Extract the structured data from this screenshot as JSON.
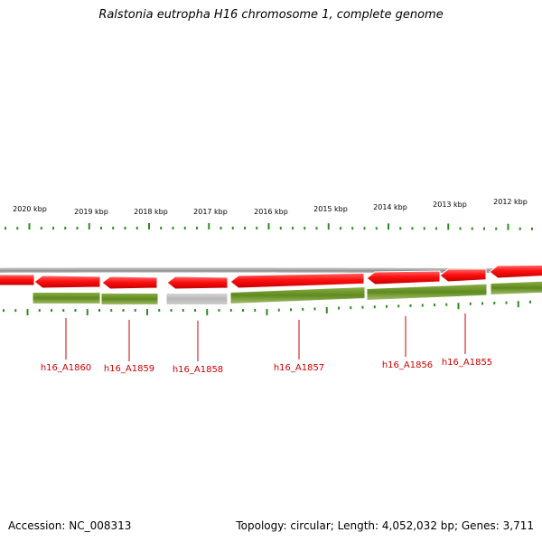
{
  "title": "Ralstonia eutropha H16 chromosome 1, complete genome",
  "accession_text": "Accession: NC_008313",
  "stats_text": "Topology: circular; Length: 4,052,032 bp; Genes: 3,711",
  "colors": {
    "forward_cds": "#ff1a1a",
    "gene": "#6b8e23",
    "pseudo_gene": "#c0c0c0",
    "backbone": "#8a8a8a",
    "ticks": "#2e8b22",
    "labels": "#cc0000"
  },
  "scale_labels": [
    "2020 kbp",
    "2019 kbp",
    "2018 kbp",
    "2017 kbp",
    "2016 kbp",
    "2015 kbp",
    "2014 kbp",
    "2013 kbp",
    "2012 kbp"
  ],
  "genes": [
    {
      "name": "h16_A1860",
      "strand": "reverse",
      "pseudo": false
    },
    {
      "name": "h16_A1859",
      "strand": "reverse",
      "pseudo": false
    },
    {
      "name": "h16_A1858",
      "strand": "reverse",
      "pseudo": true
    },
    {
      "name": "h16_A1857",
      "strand": "reverse",
      "pseudo": false
    },
    {
      "name": "h16_A1856",
      "strand": "reverse",
      "pseudo": false
    },
    {
      "name": "h16_A1855",
      "strand": "reverse",
      "pseudo": false
    }
  ]
}
